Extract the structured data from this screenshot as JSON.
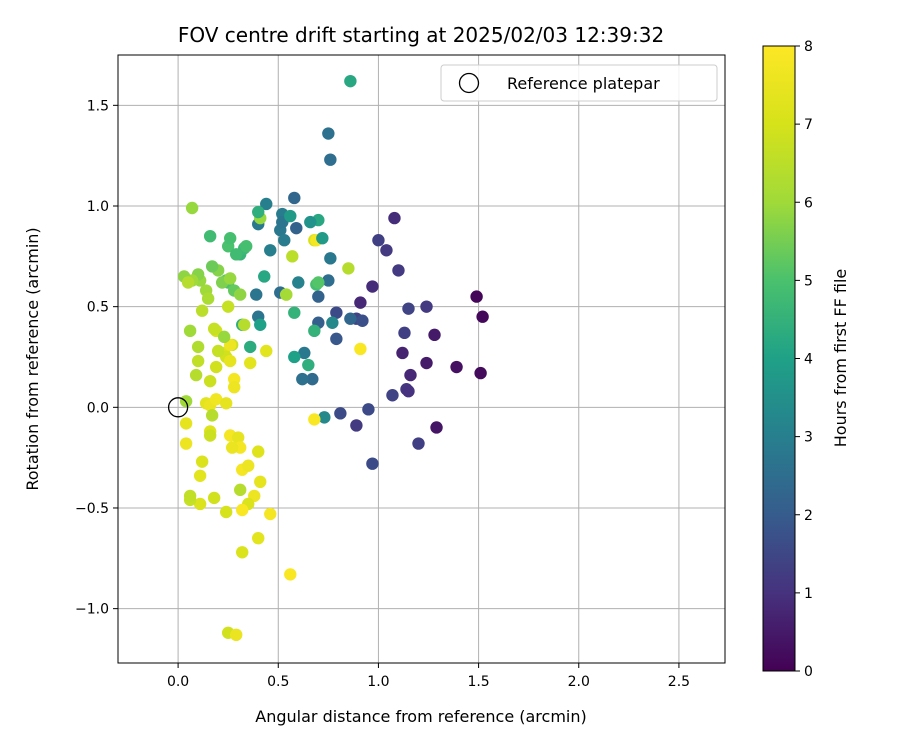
{
  "chart_data": {
    "type": "scatter",
    "title": "FOV centre drift starting at 2025/02/03 12:39:32",
    "xlabel": "Angular distance from reference (arcmin)",
    "ylabel": "Rotation from reference (arcmin)",
    "xlim": [
      -0.3,
      2.73
    ],
    "ylim": [
      -1.27,
      1.75
    ],
    "xticks": [
      0.0,
      0.5,
      1.0,
      1.5,
      2.0,
      2.5
    ],
    "xtick_labels": [
      "0.0",
      "0.5",
      "1.0",
      "1.5",
      "2.0",
      "2.5"
    ],
    "yticks": [
      -1.0,
      -0.5,
      0.0,
      0.5,
      1.0,
      1.5
    ],
    "ytick_labels": [
      "−1.0",
      "−0.5",
      "0.0",
      "0.5",
      "1.0",
      "1.5"
    ],
    "grid": true,
    "legend": {
      "placement": "top-right",
      "entries": [
        {
          "label": "Reference platepar",
          "marker": "open-circle"
        }
      ],
      "reference_point": [
        0.0,
        0.0
      ]
    },
    "colorbar": {
      "label": "Hours from first FF file",
      "colormap": "viridis",
      "range": [
        0,
        8
      ],
      "ticks": [
        0,
        1,
        2,
        3,
        4,
        5,
        6,
        7,
        8
      ],
      "tick_labels": [
        "0",
        "1",
        "2",
        "3",
        "4",
        "5",
        "6",
        "7",
        "8"
      ]
    },
    "points": [
      [
        1.49,
        0.55,
        0.1
      ],
      [
        1.52,
        0.45,
        0.15
      ],
      [
        1.51,
        0.17,
        0.2
      ],
      [
        1.39,
        0.2,
        0.3
      ],
      [
        1.28,
        0.36,
        0.5
      ],
      [
        1.24,
        0.22,
        0.5
      ],
      [
        1.29,
        -0.1,
        0.4
      ],
      [
        1.16,
        0.16,
        0.8
      ],
      [
        1.14,
        0.09,
        1.1
      ],
      [
        1.15,
        0.08,
        1.0
      ],
      [
        1.12,
        0.27,
        0.7
      ],
      [
        1.13,
        0.37,
        1.3
      ],
      [
        1.15,
        0.49,
        1.4
      ],
      [
        1.24,
        0.5,
        1.2
      ],
      [
        1.2,
        -0.18,
        1.3
      ],
      [
        1.07,
        0.06,
        1.4
      ],
      [
        1.1,
        0.68,
        1.2
      ],
      [
        1.08,
        0.94,
        0.9
      ],
      [
        1.04,
        0.78,
        1.2
      ],
      [
        1.0,
        0.83,
        1.3
      ],
      [
        0.97,
        0.6,
        0.9
      ],
      [
        0.91,
        0.52,
        0.8
      ],
      [
        0.89,
        0.44,
        1.4
      ],
      [
        0.92,
        0.43,
        1.7
      ],
      [
        0.95,
        -0.01,
        1.6
      ],
      [
        0.97,
        -0.28,
        1.6
      ],
      [
        0.89,
        -0.09,
        1.2
      ],
      [
        0.81,
        -0.03,
        1.6
      ],
      [
        0.79,
        0.34,
        1.9
      ],
      [
        0.79,
        0.47,
        1.6
      ],
      [
        0.7,
        0.55,
        2.2
      ],
      [
        0.7,
        0.42,
        2.1
      ],
      [
        0.75,
        0.63,
        2.5
      ],
      [
        0.76,
        0.74,
        2.8
      ],
      [
        0.76,
        1.23,
        2.5
      ],
      [
        0.75,
        1.36,
        2.6
      ],
      [
        0.86,
        1.62,
        4.2
      ],
      [
        0.67,
        0.14,
        2.4
      ],
      [
        0.62,
        0.14,
        2.6
      ],
      [
        0.63,
        0.27,
        2.8
      ],
      [
        0.73,
        -0.05,
        3.3
      ],
      [
        0.59,
        0.89,
        2.2
      ],
      [
        0.58,
        1.04,
        2.3
      ],
      [
        0.52,
        0.96,
        2.9
      ],
      [
        0.51,
        0.88,
        2.8
      ],
      [
        0.52,
        0.92,
        2.7
      ],
      [
        0.53,
        0.83,
        2.9
      ],
      [
        0.51,
        0.57,
        2.5
      ],
      [
        0.46,
        0.78,
        3.0
      ],
      [
        0.44,
        1.01,
        3.0
      ],
      [
        0.4,
        0.91,
        2.8
      ],
      [
        0.39,
        0.56,
        2.7
      ],
      [
        0.4,
        0.45,
        2.7
      ],
      [
        0.44,
        0.28,
        7.3
      ],
      [
        0.41,
        0.41,
        4.0
      ],
      [
        0.43,
        0.65,
        4.2
      ],
      [
        0.36,
        0.3,
        4.3
      ],
      [
        0.32,
        0.41,
        4.4
      ],
      [
        0.31,
        0.76,
        4.6
      ],
      [
        0.33,
        0.79,
        4.7
      ],
      [
        0.34,
        0.8,
        4.9
      ],
      [
        0.25,
        0.8,
        5.0
      ],
      [
        0.26,
        0.84,
        4.9
      ],
      [
        0.24,
        0.63,
        5.2
      ],
      [
        0.25,
        0.62,
        5.0
      ],
      [
        0.29,
        0.76,
        4.8
      ],
      [
        0.28,
        0.58,
        5.3
      ],
      [
        0.22,
        0.62,
        5.6
      ],
      [
        0.26,
        0.64,
        5.9
      ],
      [
        0.2,
        0.68,
        5.7
      ],
      [
        0.17,
        0.7,
        5.4
      ],
      [
        0.16,
        0.85,
        4.8
      ],
      [
        0.14,
        0.58,
        6.0
      ],
      [
        0.15,
        0.54,
        6.2
      ],
      [
        0.11,
        0.63,
        5.9
      ],
      [
        0.1,
        0.66,
        5.7
      ],
      [
        0.07,
        0.63,
        6.0
      ],
      [
        0.03,
        0.65,
        5.8
      ],
      [
        0.07,
        0.99,
        5.9
      ],
      [
        0.05,
        0.62,
        6.4
      ],
      [
        0.12,
        0.48,
        6.5
      ],
      [
        0.25,
        0.5,
        6.7
      ],
      [
        0.31,
        0.56,
        5.8
      ],
      [
        0.27,
        0.31,
        6.8
      ],
      [
        0.19,
        0.38,
        7.0
      ],
      [
        0.18,
        0.39,
        6.7
      ],
      [
        0.06,
        0.38,
        6.0
      ],
      [
        0.1,
        0.3,
        6.3
      ],
      [
        0.1,
        0.23,
        6.6
      ],
      [
        0.19,
        0.2,
        6.9
      ],
      [
        0.23,
        0.27,
        7.2
      ],
      [
        0.24,
        0.25,
        6.9
      ],
      [
        0.26,
        0.23,
        7.4
      ],
      [
        0.26,
        0.31,
        7.6
      ],
      [
        0.28,
        0.14,
        7.8
      ],
      [
        0.28,
        0.1,
        7.6
      ],
      [
        0.16,
        0.13,
        6.8
      ],
      [
        0.09,
        0.16,
        6.4
      ],
      [
        0.04,
        0.03,
        6.0
      ],
      [
        0.14,
        0.02,
        7.3
      ],
      [
        0.16,
        0.01,
        7.5
      ],
      [
        0.19,
        0.04,
        7.7
      ],
      [
        0.24,
        0.02,
        7.4
      ],
      [
        0.17,
        -0.04,
        6.4
      ],
      [
        0.16,
        -0.12,
        7.2
      ],
      [
        0.16,
        -0.14,
        6.8
      ],
      [
        0.04,
        -0.08,
        7.4
      ],
      [
        0.04,
        -0.18,
        7.6
      ],
      [
        0.26,
        -0.14,
        7.8
      ],
      [
        0.3,
        -0.15,
        7.4
      ],
      [
        0.31,
        -0.2,
        7.8
      ],
      [
        0.27,
        -0.2,
        7.5
      ],
      [
        0.32,
        -0.31,
        7.8
      ],
      [
        0.35,
        -0.29,
        7.6
      ],
      [
        0.4,
        -0.22,
        7.2
      ],
      [
        0.41,
        -0.37,
        7.4
      ],
      [
        0.31,
        -0.41,
        6.4
      ],
      [
        0.38,
        -0.44,
        7.6
      ],
      [
        0.35,
        -0.48,
        7.1
      ],
      [
        0.32,
        -0.51,
        7.9
      ],
      [
        0.46,
        -0.53,
        7.8
      ],
      [
        0.24,
        -0.52,
        7.0
      ],
      [
        0.18,
        -0.45,
        6.9
      ],
      [
        0.11,
        -0.48,
        7.1
      ],
      [
        0.06,
        -0.46,
        6.7
      ],
      [
        0.06,
        -0.44,
        6.6
      ],
      [
        0.11,
        -0.34,
        7.3
      ],
      [
        0.12,
        -0.27,
        7.1
      ],
      [
        0.4,
        -0.65,
        7.3
      ],
      [
        0.32,
        -0.72,
        7.1
      ],
      [
        0.56,
        -0.83,
        7.9
      ],
      [
        0.25,
        -1.12,
        6.9
      ],
      [
        0.29,
        -1.13,
        7.5
      ],
      [
        0.57,
        0.75,
        6.5
      ],
      [
        0.54,
        0.56,
        7.8
      ],
      [
        0.54,
        0.56,
        6.1
      ],
      [
        0.58,
        0.47,
        4.5
      ],
      [
        0.58,
        0.25,
        4.0
      ],
      [
        0.65,
        0.21,
        4.4
      ],
      [
        0.68,
        0.38,
        4.5
      ],
      [
        0.69,
        0.61,
        4.9
      ],
      [
        0.7,
        0.62,
        5.1
      ],
      [
        0.68,
        0.83,
        7.0
      ],
      [
        0.69,
        0.83,
        7.8
      ],
      [
        0.72,
        0.84,
        3.8
      ],
      [
        0.7,
        0.93,
        4.2
      ],
      [
        0.66,
        0.92,
        3.6
      ],
      [
        0.56,
        0.95,
        3.8
      ],
      [
        0.41,
        0.94,
        5.9
      ],
      [
        0.4,
        0.97,
        4.4
      ],
      [
        0.85,
        0.69,
        6.4
      ],
      [
        0.91,
        0.29,
        7.9
      ],
      [
        0.68,
        -0.06,
        7.9
      ],
      [
        0.23,
        0.35,
        5.9
      ],
      [
        0.2,
        0.28,
        6.7
      ],
      [
        0.36,
        0.22,
        7.3
      ],
      [
        0.33,
        0.41,
        6.4
      ],
      [
        0.77,
        0.42,
        3.3
      ],
      [
        0.86,
        0.44,
        2.3
      ],
      [
        0.6,
        0.62,
        3.1
      ]
    ]
  }
}
